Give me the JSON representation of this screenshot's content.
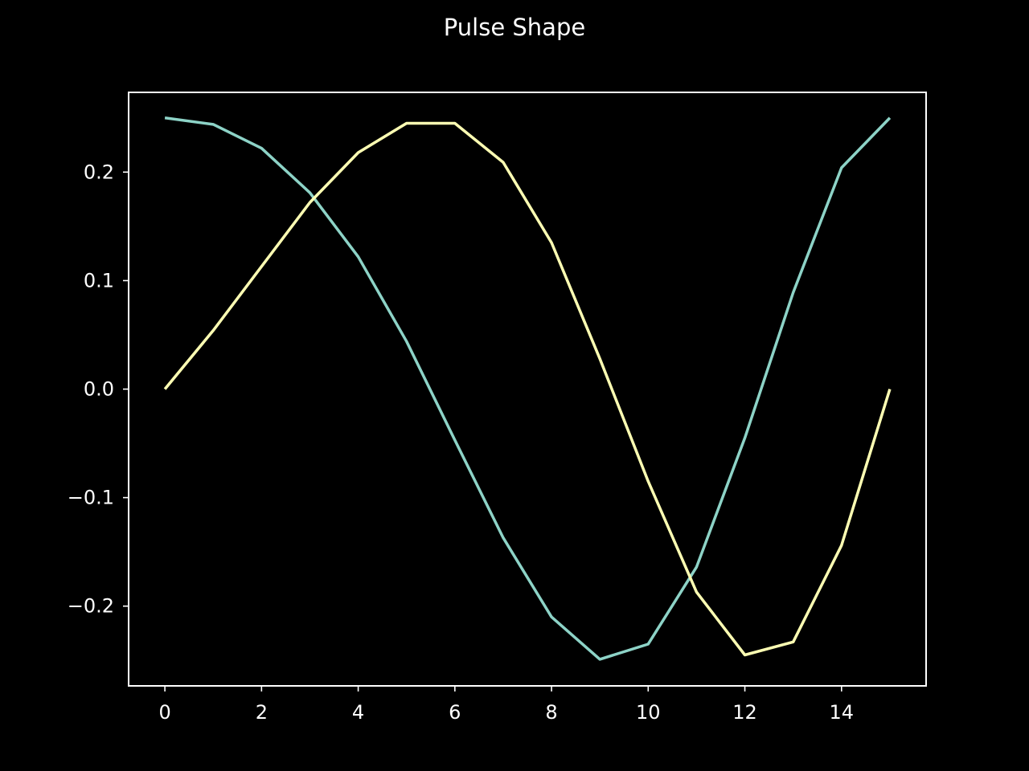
{
  "chart_data": {
    "type": "line",
    "title": "Pulse Shape",
    "xlabel": "",
    "ylabel": "",
    "xlim": [
      -0.75,
      15.75
    ],
    "ylim": [
      -0.2735,
      0.2735
    ],
    "x_ticks": [
      0,
      2,
      4,
      6,
      8,
      10,
      12,
      14
    ],
    "x_tick_labels": [
      "0",
      "2",
      "4",
      "6",
      "8",
      "10",
      "12",
      "14"
    ],
    "y_ticks": [
      0.2,
      0.1,
      0.0,
      -0.1,
      -0.2
    ],
    "y_tick_labels": [
      "0.2",
      "0.1",
      "0.0",
      "−0.1",
      "−0.2"
    ],
    "grid": false,
    "legend": "none",
    "x": [
      0,
      1,
      2,
      3,
      4,
      5,
      6,
      7,
      8,
      9,
      10,
      11,
      12,
      13,
      14,
      15
    ],
    "series": [
      {
        "color": "#8dd3c7",
        "values": [
          0.25,
          0.244,
          0.222,
          0.181,
          0.122,
          0.044,
          -0.047,
          -0.137,
          -0.21,
          -0.249,
          -0.235,
          -0.164,
          -0.045,
          0.089,
          0.204,
          0.25
        ]
      },
      {
        "color": "#feffb3",
        "values": [
          0.0,
          0.054,
          0.113,
          0.172,
          0.218,
          0.245,
          0.245,
          0.209,
          0.135,
          0.028,
          -0.085,
          -0.187,
          -0.245,
          -0.233,
          -0.144,
          0.0
        ]
      }
    ]
  }
}
